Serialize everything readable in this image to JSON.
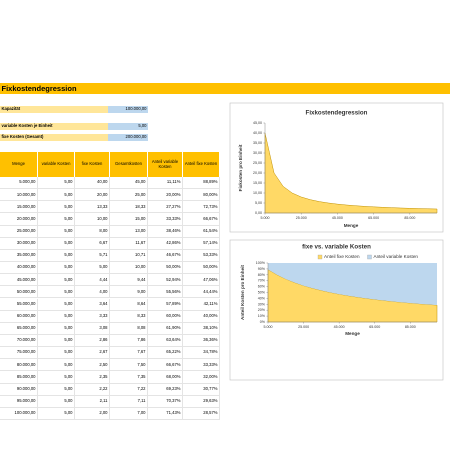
{
  "sheet": {
    "title": "Fixkostendegression",
    "inputs": [
      {
        "label": "Kapazität",
        "value": "100.000,00"
      },
      {
        "label": "variable Kosten je Einheit",
        "value": "5,00"
      },
      {
        "label": "fixe Kosten (Gesamt)",
        "value": "200.000,00"
      }
    ],
    "table": {
      "header": [
        "Menge",
        "variable Kosten",
        "fixe Kosten",
        "Gesamtkosten",
        "Anteil variable Kosten",
        "Anteil fixe Kosten"
      ],
      "rows": [
        [
          "5.000,00",
          "5,00",
          "40,00",
          "45,00",
          "11,11%",
          "88,89%"
        ],
        [
          "10.000,00",
          "5,00",
          "20,00",
          "25,00",
          "20,00%",
          "80,00%"
        ],
        [
          "15.000,00",
          "5,00",
          "13,33",
          "18,33",
          "27,27%",
          "72,73%"
        ],
        [
          "20.000,00",
          "5,00",
          "10,00",
          "15,00",
          "33,33%",
          "66,67%"
        ],
        [
          "25.000,00",
          "5,00",
          "8,00",
          "13,00",
          "38,46%",
          "61,54%"
        ],
        [
          "30.000,00",
          "5,00",
          "6,67",
          "11,67",
          "42,86%",
          "57,14%"
        ],
        [
          "35.000,00",
          "5,00",
          "5,71",
          "10,71",
          "46,67%",
          "53,33%"
        ],
        [
          "40.000,00",
          "5,00",
          "5,00",
          "10,00",
          "50,00%",
          "50,00%"
        ],
        [
          "45.000,00",
          "5,00",
          "4,44",
          "9,44",
          "52,94%",
          "47,06%"
        ],
        [
          "50.000,00",
          "5,00",
          "4,00",
          "9,00",
          "55,56%",
          "44,44%"
        ],
        [
          "55.000,00",
          "5,00",
          "3,64",
          "8,64",
          "57,89%",
          "42,11%"
        ],
        [
          "60.000,00",
          "5,00",
          "3,33",
          "8,33",
          "60,00%",
          "40,00%"
        ],
        [
          "65.000,00",
          "5,00",
          "3,08",
          "8,08",
          "61,90%",
          "38,10%"
        ],
        [
          "70.000,00",
          "5,00",
          "2,86",
          "7,86",
          "63,64%",
          "36,36%"
        ],
        [
          "75.000,00",
          "5,00",
          "2,67",
          "7,67",
          "65,22%",
          "34,78%"
        ],
        [
          "80.000,00",
          "5,00",
          "2,50",
          "7,50",
          "66,67%",
          "33,33%"
        ],
        [
          "85.000,00",
          "5,00",
          "2,35",
          "7,35",
          "68,00%",
          "32,00%"
        ],
        [
          "90.000,00",
          "5,00",
          "2,22",
          "7,22",
          "69,23%",
          "30,77%"
        ],
        [
          "95.000,00",
          "5,00",
          "2,11",
          "7,11",
          "70,37%",
          "29,63%"
        ],
        [
          "100.000,00",
          "5,00",
          "2,00",
          "7,00",
          "71,43%",
          "28,57%"
        ]
      ]
    }
  },
  "chart_data": [
    {
      "type": "area",
      "title": "Fixkostendegression",
      "x_label": "Menge",
      "y_label": "Fixkosten pro Einheit",
      "x": [
        5000,
        10000,
        15000,
        20000,
        25000,
        30000,
        35000,
        40000,
        45000,
        50000,
        55000,
        60000,
        65000,
        70000,
        75000,
        80000,
        85000,
        90000,
        95000,
        100000
      ],
      "series": [
        {
          "color": "#ffd966",
          "values": [
            40,
            20,
            13.33,
            10,
            8,
            6.67,
            5.71,
            5,
            4.44,
            4,
            3.64,
            3.33,
            3.08,
            2.86,
            2.67,
            2.5,
            2.35,
            2.22,
            2.11,
            2
          ]
        }
      ],
      "xlim": [
        5000,
        100000
      ],
      "xticks": [
        {
          "value": 5000,
          "label": "5.000"
        },
        {
          "value": 25000,
          "label": "25.000"
        },
        {
          "value": 45000,
          "label": "45.000"
        },
        {
          "value": 65000,
          "label": "65.000"
        },
        {
          "value": 85000,
          "label": "85.000"
        }
      ],
      "ylim": [
        0,
        45
      ],
      "yticks": [
        {
          "value": 0,
          "label": "0,00"
        },
        {
          "value": 5,
          "label": "5,00"
        },
        {
          "value": 10,
          "label": "10,00"
        },
        {
          "value": 15,
          "label": "15,00"
        },
        {
          "value": 20,
          "label": "20,00"
        },
        {
          "value": 25,
          "label": "25,00"
        },
        {
          "value": 30,
          "label": "30,00"
        },
        {
          "value": 35,
          "label": "35,00"
        },
        {
          "value": 40,
          "label": "40,00"
        },
        {
          "value": 45,
          "label": "45,00"
        }
      ],
      "stacked": false,
      "legend": false
    },
    {
      "type": "area",
      "title": "fixe vs. variable Kosten",
      "x_label": "Menge",
      "y_label": "Anteil Kosten pro Einheit",
      "x": [
        5000,
        10000,
        15000,
        20000,
        25000,
        30000,
        35000,
        40000,
        45000,
        50000,
        55000,
        60000,
        65000,
        70000,
        75000,
        80000,
        85000,
        90000,
        95000,
        100000
      ],
      "series": [
        {
          "name": "Anteil fixe Kosten",
          "color": "#ffd966",
          "values": [
            88.89,
            80,
            72.73,
            66.67,
            61.54,
            57.14,
            53.33,
            50,
            47.06,
            44.44,
            42.11,
            40,
            38.1,
            36.36,
            34.78,
            33.33,
            32,
            30.77,
            29.63,
            28.57
          ]
        },
        {
          "name": "Anteil variable Kosten",
          "color": "#bdd7ee",
          "values": [
            11.11,
            20,
            27.27,
            33.33,
            38.46,
            42.86,
            46.67,
            50,
            52.94,
            55.56,
            57.89,
            60,
            61.9,
            63.64,
            65.22,
            66.67,
            68,
            69.23,
            70.37,
            71.43
          ]
        }
      ],
      "xlim": [
        5000,
        100000
      ],
      "xticks": [
        {
          "value": 5000,
          "label": "5.000"
        },
        {
          "value": 25000,
          "label": "25.000"
        },
        {
          "value": 45000,
          "label": "45.000"
        },
        {
          "value": 65000,
          "label": "65.000"
        },
        {
          "value": 85000,
          "label": "85.000"
        }
      ],
      "ylim": [
        0,
        100
      ],
      "yticks": [
        {
          "value": 0,
          "label": "0%"
        },
        {
          "value": 10,
          "label": "10%"
        },
        {
          "value": 20,
          "label": "20%"
        },
        {
          "value": 30,
          "label": "30%"
        },
        {
          "value": 40,
          "label": "40%"
        },
        {
          "value": 50,
          "label": "50%"
        },
        {
          "value": 60,
          "label": "60%"
        },
        {
          "value": 70,
          "label": "70%"
        },
        {
          "value": 80,
          "label": "80%"
        },
        {
          "value": 90,
          "label": "90%"
        },
        {
          "value": 100,
          "label": "100%"
        }
      ],
      "stacked": true,
      "legend": "top"
    }
  ]
}
